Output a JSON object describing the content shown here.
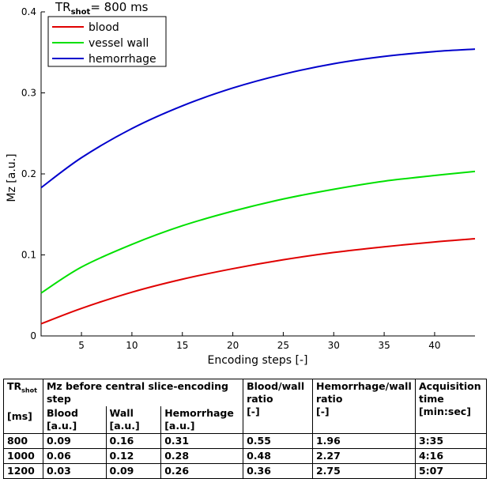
{
  "chart_data": {
    "type": "line",
    "title_prefix": "TR",
    "title_sub": "shot",
    "title_suffix": "= 800 ms",
    "xlabel": "Encoding steps [-]",
    "ylabel": "Mz [a.u.]",
    "xlim": [
      1,
      44
    ],
    "ylim": [
      0,
      0.4
    ],
    "xticks": [
      5,
      10,
      15,
      20,
      25,
      30,
      35,
      40
    ],
    "yticks": [
      0,
      0.1,
      0.2,
      0.3,
      0.4
    ],
    "ytick_labels": [
      "0",
      "0.1",
      "0.2",
      "0.3",
      "0.4"
    ],
    "legend_position": "top-left",
    "series": [
      {
        "name": "blood",
        "color": "#e00000",
        "x": [
          1,
          5,
          10,
          15,
          20,
          25,
          30,
          35,
          40,
          44
        ],
        "y": [
          0.015,
          0.034,
          0.054,
          0.07,
          0.083,
          0.094,
          0.103,
          0.11,
          0.116,
          0.12
        ]
      },
      {
        "name": "vessel wall",
        "color": "#00e000",
        "x": [
          1,
          5,
          10,
          15,
          20,
          25,
          30,
          35,
          40,
          44
        ],
        "y": [
          0.053,
          0.085,
          0.113,
          0.136,
          0.154,
          0.169,
          0.181,
          0.191,
          0.198,
          0.203
        ]
      },
      {
        "name": "hemorrhage",
        "color": "#0000cc",
        "x": [
          1,
          5,
          10,
          15,
          20,
          25,
          30,
          35,
          40,
          44
        ],
        "y": [
          0.183,
          0.22,
          0.256,
          0.284,
          0.306,
          0.323,
          0.336,
          0.345,
          0.351,
          0.354
        ]
      }
    ]
  },
  "table": {
    "h_tr": "TR",
    "h_tr_sub": "shot",
    "h_mz": "Mz before central slice-encoding step",
    "h_ratio1_line1": "Blood/wall",
    "h_ratio1_line2": "ratio",
    "h_ratio2_line1": "Hemorrhage/wall",
    "h_ratio2_line2": "ratio",
    "h_acq_line1": "Acquisition",
    "h_acq_line2": "time",
    "h_acq_line3": "[min:sec]",
    "h_unit_ms": "[ms]",
    "h_blood": "Blood",
    "h_blood_unit": "[a.u.]",
    "h_wall": "Wall",
    "h_wall_unit": "[a.u.]",
    "h_hem": "Hemorrhage",
    "h_hem_unit": "[a.u.]",
    "h_ratio_unit": "[-]",
    "rows": [
      {
        "tr": "800",
        "blood": "0.09",
        "wall": "0.16",
        "hem": "0.31",
        "bw": "0.55",
        "hw": "1.96",
        "acq": "3:35"
      },
      {
        "tr": "1000",
        "blood": "0.06",
        "wall": "0.12",
        "hem": "0.28",
        "bw": "0.48",
        "hw": "2.27",
        "acq": "4:16"
      },
      {
        "tr": "1200",
        "blood": "0.03",
        "wall": "0.09",
        "hem": "0.26",
        "bw": "0.36",
        "hw": "2.75",
        "acq": "5:07"
      }
    ]
  }
}
